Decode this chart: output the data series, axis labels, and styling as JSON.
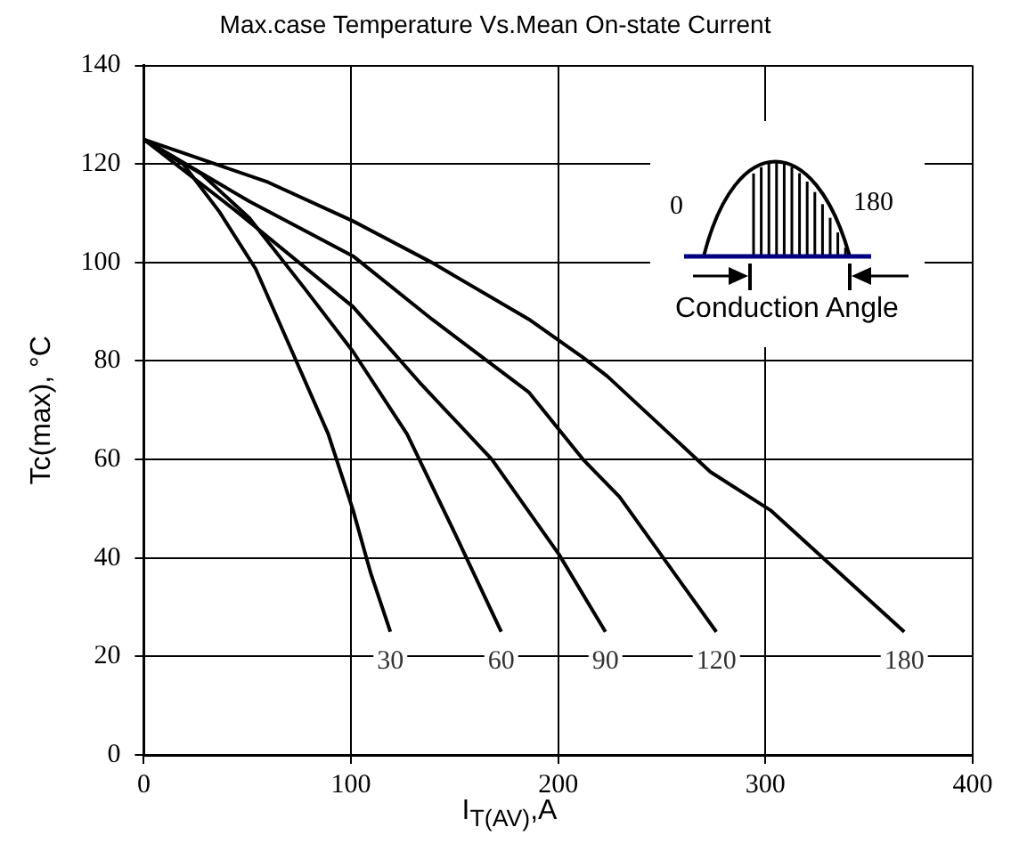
{
  "chart_data": {
    "type": "line",
    "title": "Max.case Temperature Vs.Mean On-state Current",
    "xlabel": "I$_{T(AV)}$,A",
    "ylabel": "Tc(max), °C",
    "xlim": [
      0,
      400
    ],
    "xticks": [
      0,
      100,
      200,
      300,
      400
    ],
    "ylim": [
      0,
      140
    ],
    "yticks": [
      0,
      20,
      40,
      60,
      80,
      100,
      120,
      140
    ],
    "grid": true,
    "legend": false,
    "marker": "none",
    "line_style": "solid",
    "annotations": [
      "0",
      "180",
      "Conduction Angle"
    ],
    "series": [
      {
        "name": "30",
        "color": "#000000",
        "x": [
          0,
          19,
          36.5,
          54,
          71.6,
          89,
          101,
          109.6,
          119
        ],
        "values": [
          125,
          120,
          110.3,
          98.7,
          81.9,
          65.2,
          49.7,
          36.8,
          25
        ]
      },
      {
        "name": "60",
        "color": "#000000",
        "x": [
          0,
          27.8,
          51,
          77.5,
          101,
          127,
          150.6,
          172.5
        ],
        "values": [
          125,
          118,
          109,
          94.8,
          81.9,
          65.2,
          44.6,
          25
        ]
      },
      {
        "name": "90",
        "color": "#000000",
        "x": [
          0,
          45,
          101,
          133,
          168,
          200.4,
          222.8
        ],
        "values": [
          125,
          110.3,
          91,
          75.7,
          60,
          40.7,
          25
        ]
      },
      {
        "name": "120",
        "color": "#000000",
        "x": [
          0,
          51,
          101,
          139,
          185.7,
          212,
          229.6,
          276.3
        ],
        "values": [
          125,
          112.4,
          101.3,
          88.5,
          73.7,
          60,
          52.4,
          25
        ]
      },
      {
        "name": "180",
        "color": "#000000",
        "x": [
          0,
          60,
          101,
          139,
          185.7,
          212,
          223.7,
          273.4,
          302.4,
          367
        ],
        "values": [
          125,
          116.3,
          108.4,
          100,
          88.5,
          80.7,
          76.9,
          57.5,
          49.7,
          25
        ]
      }
    ]
  }
}
